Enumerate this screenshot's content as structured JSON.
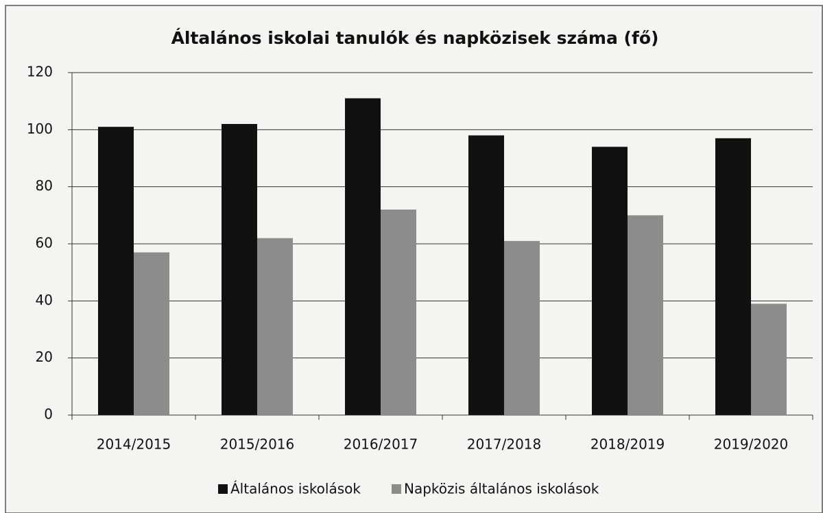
{
  "chart_data": {
    "type": "bar",
    "title": "Általános iskolai tanulók és napközisek száma (fő)",
    "categories": [
      "2014/2015",
      "2015/2016",
      "2016/2017",
      "2017/2018",
      "2018/2019",
      "2019/2020"
    ],
    "series": [
      {
        "name": "Általános iskolások",
        "color": "#111111",
        "values": [
          101,
          102,
          111,
          98,
          94,
          97
        ]
      },
      {
        "name": "Napközis általános iskolások",
        "color": "#8c8c8c",
        "values": [
          57,
          62,
          72,
          61,
          70,
          39
        ]
      }
    ],
    "ylim": [
      0,
      120
    ],
    "yticks": [
      0,
      20,
      40,
      60,
      80,
      100,
      120
    ],
    "grid": true,
    "legend": "bottom"
  }
}
